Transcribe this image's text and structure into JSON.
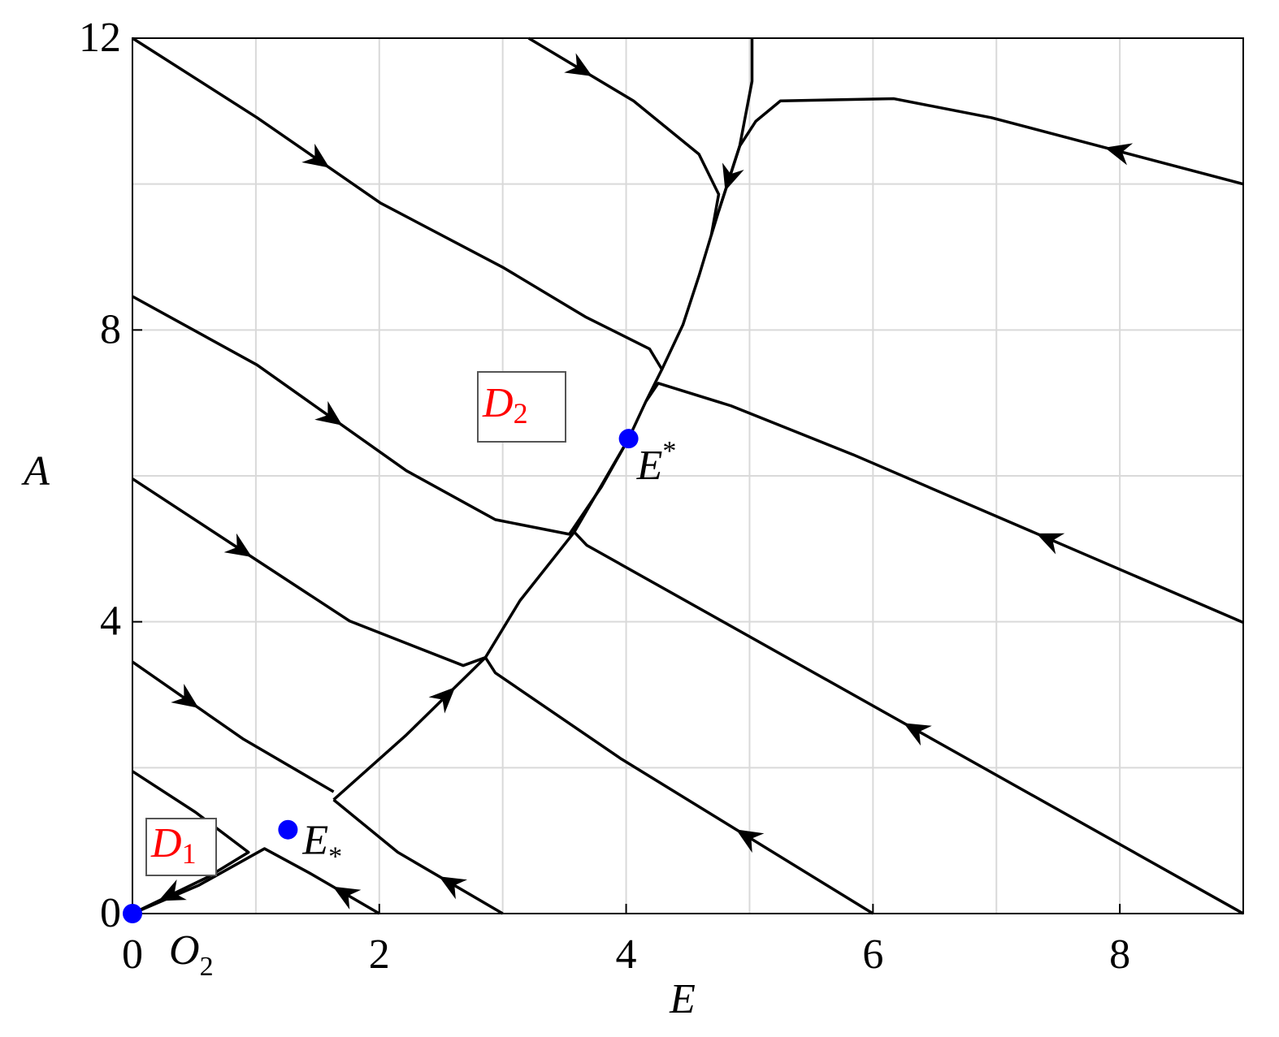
{
  "chart_data": {
    "type": "phase-portrait",
    "xlabel": "E",
    "ylabel": "A",
    "xlim": [
      0,
      9
    ],
    "ylim": [
      0,
      12
    ],
    "xticks": [
      0,
      2,
      4,
      6,
      8
    ],
    "yticks": [
      0,
      4,
      8,
      12
    ],
    "xgrid": [
      0,
      1,
      2,
      3,
      4,
      5,
      6,
      7,
      8,
      9
    ],
    "ygrid": [
      0,
      2,
      4,
      6,
      8,
      10,
      12
    ],
    "line_color": "#000000",
    "series": [
      {
        "x": [
          0,
          1.01,
          2.01,
          3.01,
          3.67,
          4.19,
          4.29,
          4.16,
          4.02
        ],
        "y": [
          12,
          10.91,
          9.74,
          8.85,
          8.18,
          7.74,
          7.46,
          7.02,
          6.51
        ]
      },
      {
        "x": [
          3.21,
          4.06,
          4.59,
          4.75,
          4.69,
          4.59,
          4.46,
          4.29
        ],
        "y": [
          12,
          11.14,
          10.41,
          9.86,
          9.3,
          8.74,
          8.07,
          7.46
        ]
      },
      {
        "x": [
          9,
          6.96,
          6.17,
          5.25,
          5.05,
          4.92,
          4.75
        ],
        "y": [
          10,
          10.91,
          11.17,
          11.14,
          10.86,
          10.52,
          9.63
        ]
      },
      {
        "x": [
          5.02,
          5.02,
          4.92,
          4.75,
          4.69
        ],
        "y": [
          12,
          11.41,
          10.52,
          9.63,
          9.3
        ]
      },
      {
        "x": [
          9,
          5.84,
          4.85,
          4.26,
          4.16
        ],
        "y": [
          3.99,
          6.29,
          6.96,
          7.27,
          7.02
        ]
      },
      {
        "x": [
          0,
          1.01,
          2.22,
          2.94,
          3.54,
          3.8,
          4.02
        ],
        "y": [
          8.46,
          7.52,
          6.07,
          5.4,
          5.2,
          5.85,
          6.51
        ]
      },
      {
        "x": [
          9,
          3.68,
          3.58
        ],
        "y": [
          0,
          5.05,
          5.23
        ]
      },
      {
        "x": [
          6,
          3.96,
          2.94,
          2.86
        ],
        "y": [
          0,
          2.12,
          3.3,
          3.51
        ]
      },
      {
        "x": [
          0,
          1.76,
          2.68,
          2.86
        ],
        "y": [
          5.96,
          4.01,
          3.4,
          3.51
        ]
      },
      {
        "x": [
          1.63,
          2.22,
          2.86,
          3.14,
          3.58,
          4.02
        ],
        "y": [
          1.56,
          2.45,
          3.51,
          4.29,
          5.23,
          6.51
        ]
      },
      {
        "x": [
          0,
          0.9,
          1.63
        ],
        "y": [
          3.45,
          2.39,
          1.67
        ]
      },
      {
        "x": [
          3,
          2.15,
          1.63
        ],
        "y": [
          0,
          0.84,
          1.56
        ]
      },
      {
        "x": [
          0,
          0.51,
          0.94,
          0.61,
          0
        ],
        "y": [
          1.95,
          1.39,
          0.84,
          0.5,
          0
        ]
      },
      {
        "x": [
          2,
          1.43,
          1.07,
          0.54,
          0
        ],
        "y": [
          0,
          0.56,
          0.89,
          0.39,
          0
        ]
      }
    ],
    "points": {
      "color": "#0000ff",
      "x": [
        0,
        1.26,
        4.02
      ],
      "y": [
        0,
        1.15,
        6.51
      ],
      "labels": [
        {
          "text": "O",
          "sub": "2"
        },
        {
          "text": "E",
          "sub": "*"
        },
        {
          "text": "E",
          "sup": "*"
        }
      ]
    },
    "regions": [
      {
        "text": "D",
        "sub": "1"
      },
      {
        "text": "D",
        "sub": "2"
      }
    ]
  }
}
